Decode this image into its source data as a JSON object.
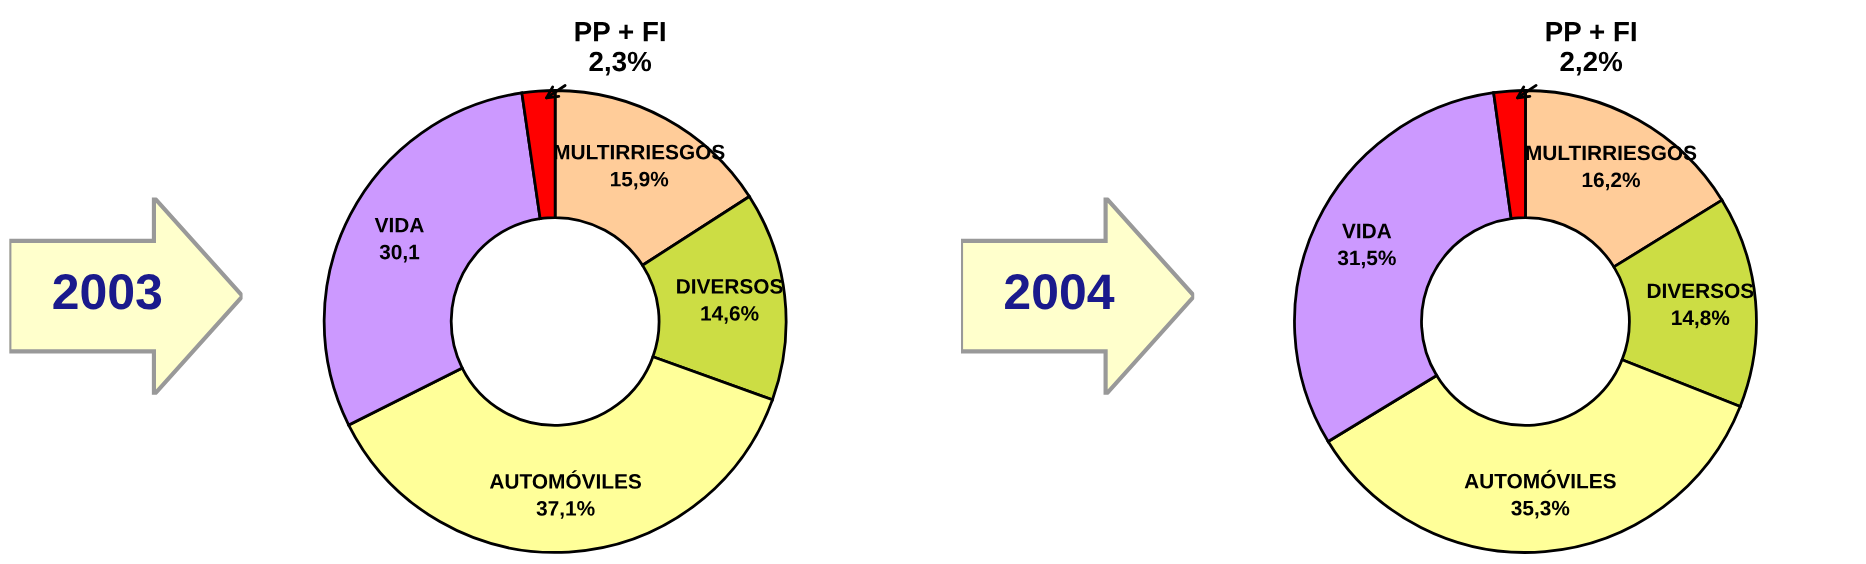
{
  "chart_data": [
    {
      "type": "donut",
      "title": "2003",
      "categories": [
        "MULTIRRIESGOS",
        "DIVERSOS",
        "AUTOMÓVILES",
        "VIDA",
        "PP + FI"
      ],
      "values": [
        15.9,
        14.6,
        37.1,
        30.1,
        2.3
      ],
      "value_labels": [
        "15,9%",
        "14,6%",
        "37,1%",
        "30,1",
        "2,3%"
      ],
      "colors": [
        "#ffcc99",
        "#ccdd44",
        "#ffff99",
        "#cc99ff",
        "#ff0000"
      ]
    },
    {
      "type": "donut",
      "title": "2004",
      "categories": [
        "MULTIRRIESGOS",
        "DIVERSOS",
        "AUTOMÓVILES",
        "VIDA",
        "PP + FI"
      ],
      "values": [
        16.2,
        14.8,
        35.3,
        31.5,
        2.2
      ],
      "value_labels": [
        "16,2%",
        "14,8%",
        "35,3%",
        "31,5%",
        "2,2%"
      ],
      "colors": [
        "#ffcc99",
        "#ccdd44",
        "#ffff99",
        "#cc99ff",
        "#ff0000"
      ]
    }
  ]
}
